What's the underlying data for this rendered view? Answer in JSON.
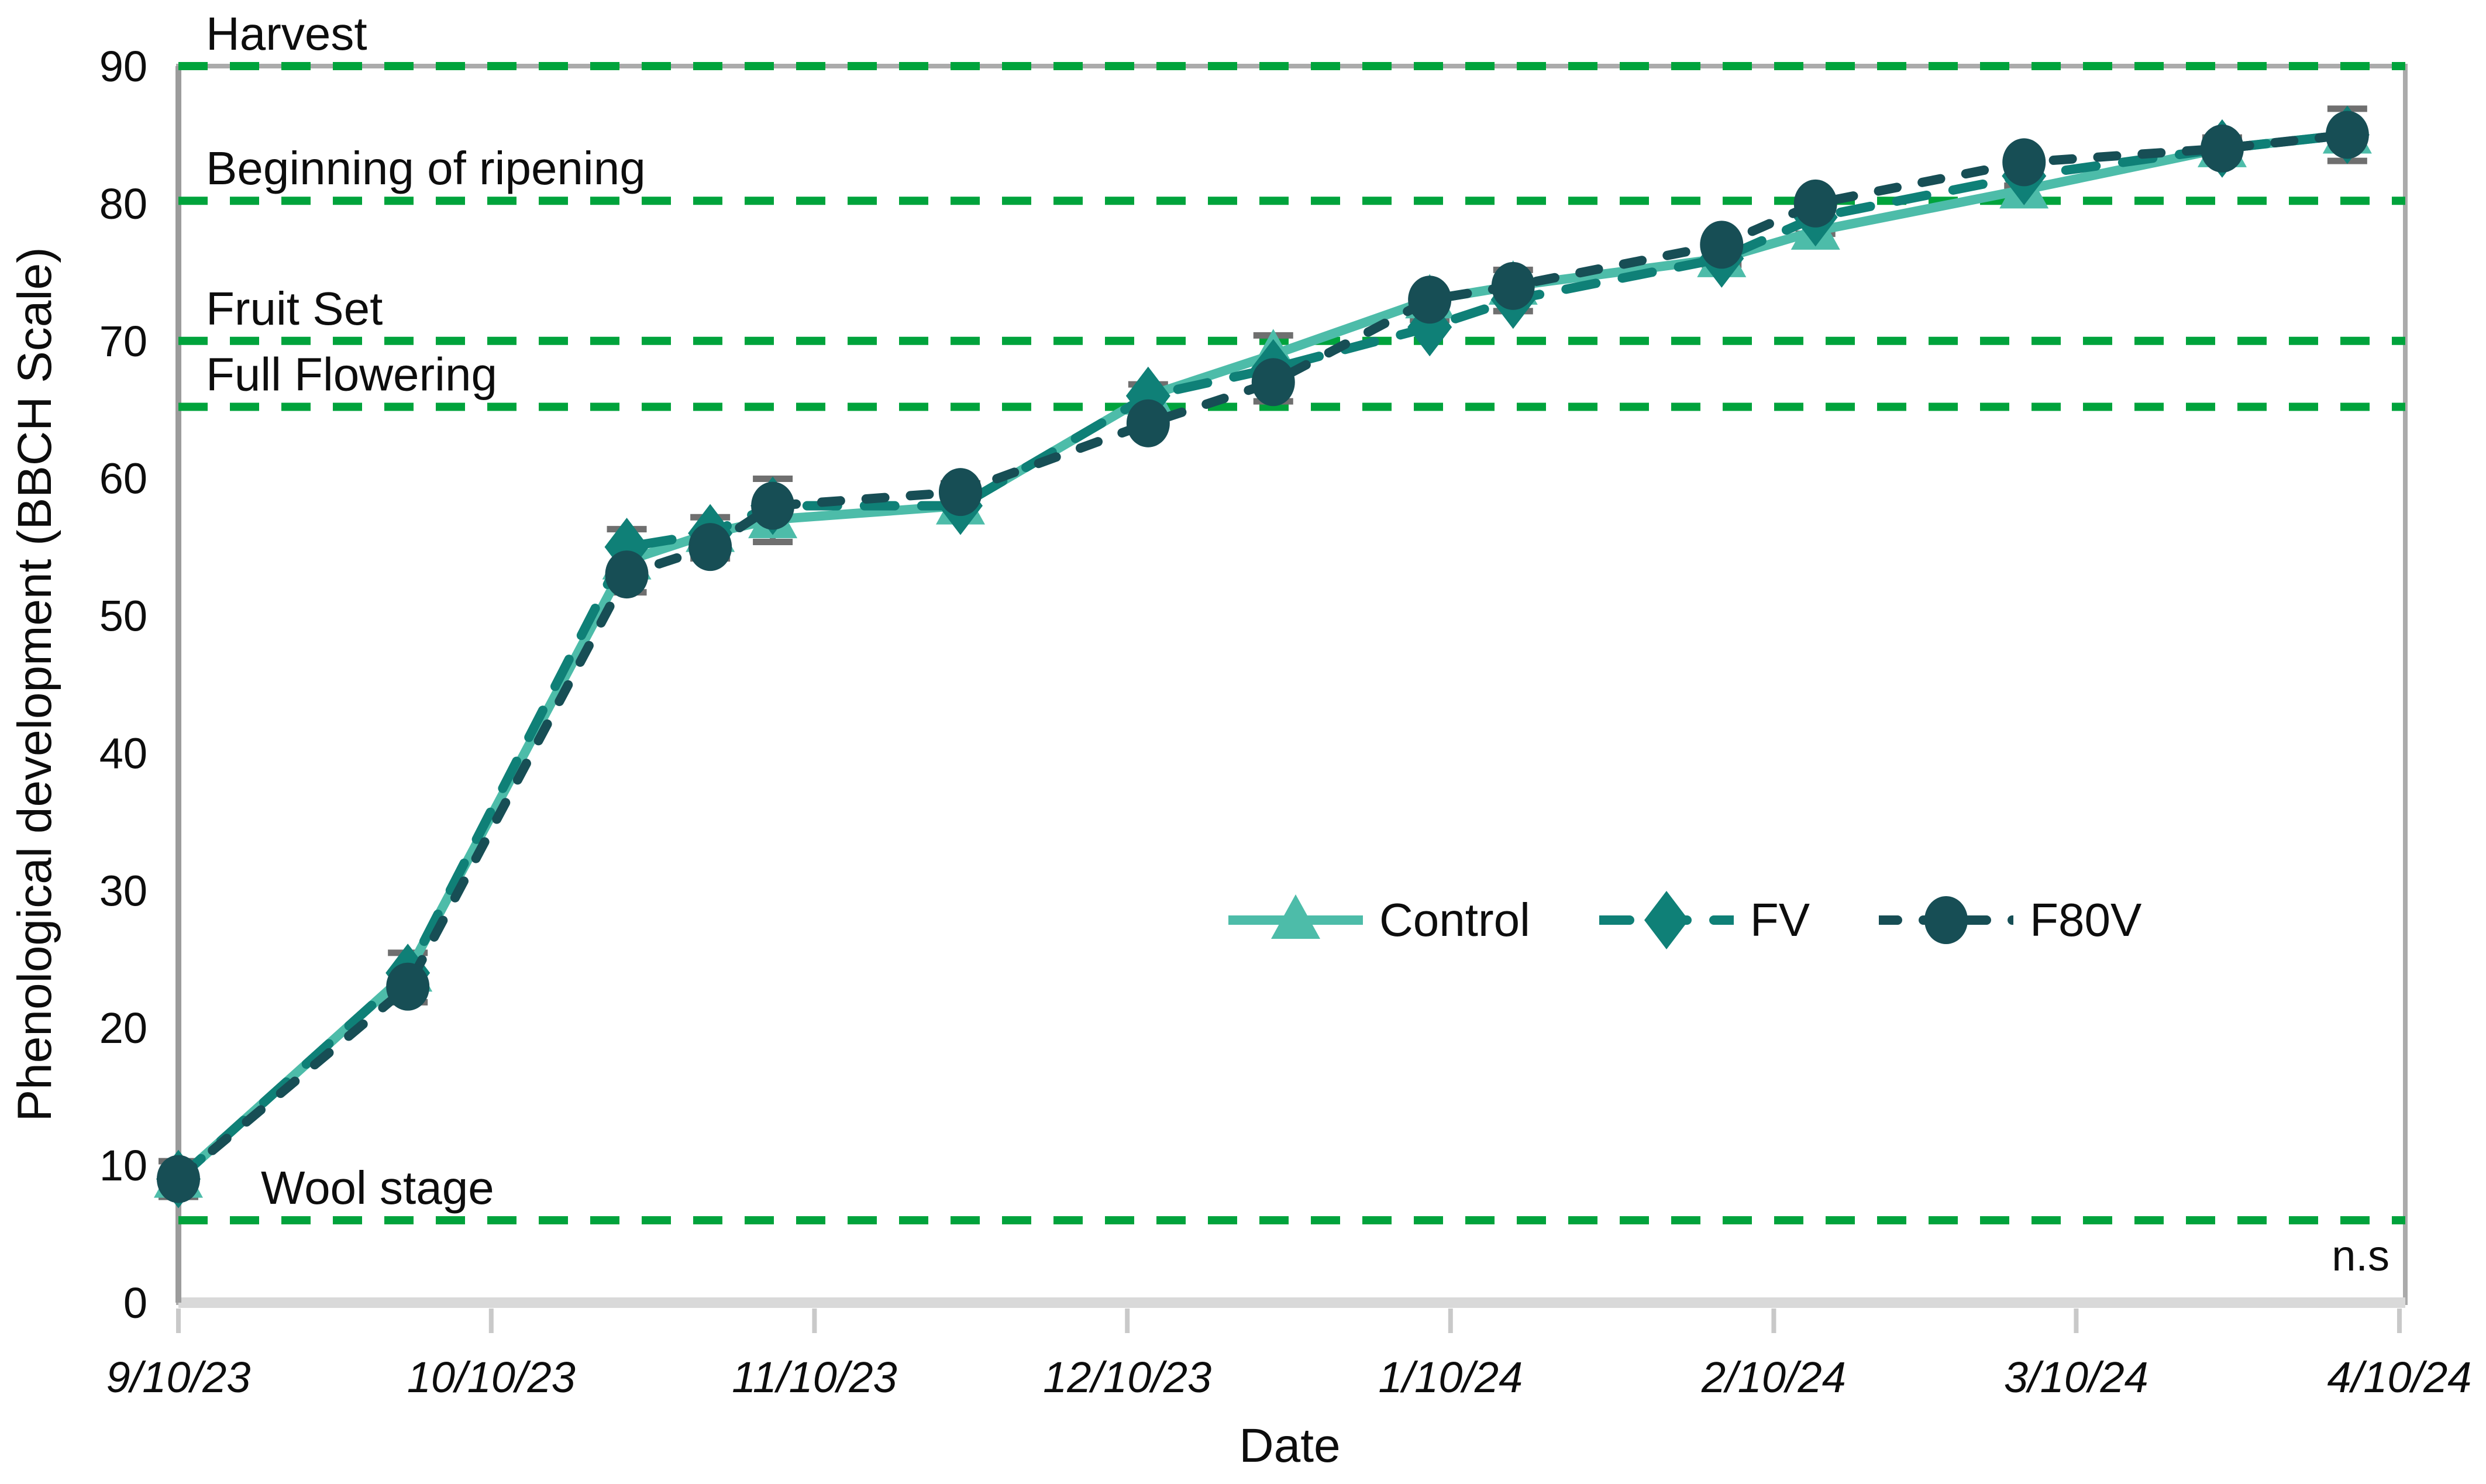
{
  "chart_data": {
    "type": "line",
    "title": "",
    "xlabel": "Date",
    "ylabel": "Phenological development (BBCH Scale)",
    "annotation": "n.s",
    "ylim": [
      0,
      90
    ],
    "y_ticks": [
      0,
      10,
      20,
      30,
      40,
      50,
      60,
      70,
      80,
      90
    ],
    "x_ticks": [
      "9/10/23",
      "10/10/23",
      "11/10/23",
      "12/10/23",
      "1/10/24",
      "2/10/24",
      "3/10/24",
      "4/10/24"
    ],
    "x": [
      "9/10/23",
      "10/2/23",
      "10/23/23",
      "10/31/23",
      "11/6/23",
      "11/24/23",
      "12/12/23",
      "12/24/23",
      "1/8/24",
      "1/16/24",
      "2/5/24",
      "2/14/24",
      "3/5/24",
      "3/24/24",
      "4/5/24"
    ],
    "series": [
      {
        "name": "Control",
        "color": "#4DBCA9",
        "marker": "triangle",
        "line": "solid",
        "values": [
          9,
          24,
          54,
          56,
          57,
          58,
          66,
          69,
          73,
          74,
          76,
          78,
          81,
          84,
          85
        ]
      },
      {
        "name": "FV",
        "color": "#0F8077",
        "marker": "diamond",
        "line": "dashed",
        "values": [
          9,
          24,
          55,
          56,
          58,
          58,
          66,
          68,
          71,
          73,
          76,
          79,
          82,
          84,
          85
        ]
      },
      {
        "name": "F80V",
        "color": "#174E55",
        "marker": "circle",
        "line": "short-dash",
        "values": [
          9,
          23,
          53,
          55,
          58,
          59,
          64,
          67,
          73,
          74,
          77,
          80,
          83,
          84,
          85
        ]
      }
    ],
    "error_bars": {
      "color": "#6F6F6F",
      "half_widths": [
        1.3,
        1.8,
        2.3,
        1.5,
        2.3,
        1.3,
        1.5,
        2.4,
        0.8,
        1.5,
        0.8,
        1.2,
        0.7,
        0.8,
        1.9
      ]
    },
    "reference_lines": [
      {
        "label": "Harvest",
        "value": 90
      },
      {
        "label": "Beginning of ripening",
        "value": 80.2
      },
      {
        "label": "Fruit Set",
        "value": 70
      },
      {
        "label": "Full Flowering",
        "value": 65.2
      },
      {
        "label": "Wool stage",
        "value": 6
      }
    ],
    "colors": {
      "background": "#FFFFFF",
      "reference_line": "#00A33C",
      "plot_border": "#ABABAB",
      "axis_left": "#9C9C9C",
      "axis_bottom": "#D9D9D9",
      "tick_mark": "#C9C9C9",
      "text": "#0D0D0D"
    },
    "legend_position": "inside-middle-right",
    "grid": "off"
  }
}
